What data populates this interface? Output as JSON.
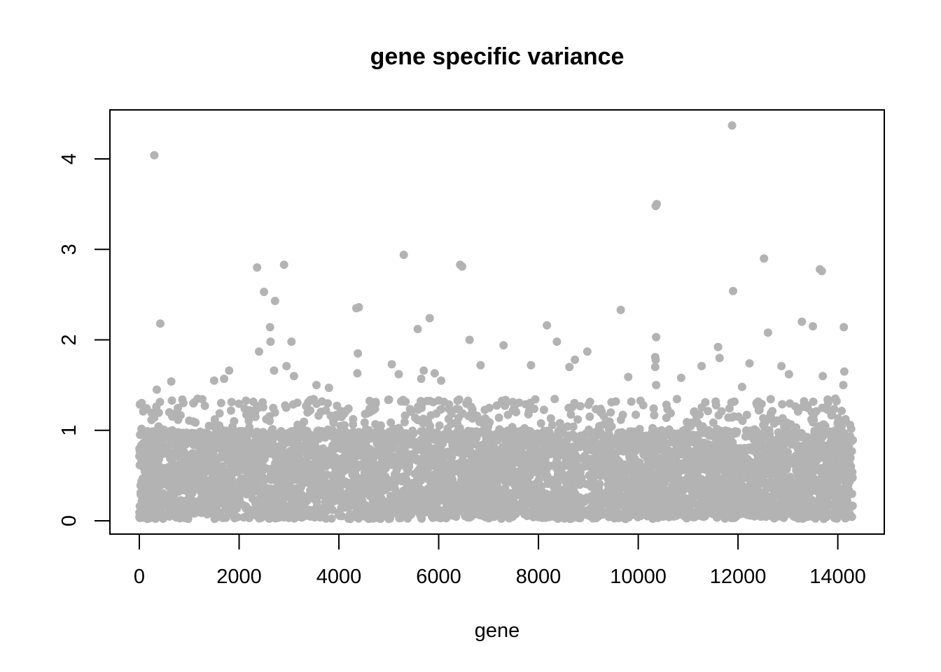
{
  "chart_data": {
    "type": "scatter",
    "title": "gene specific variance",
    "xlabel": "gene",
    "ylabel": "",
    "xlim": [
      0,
      14300
    ],
    "ylim": [
      0,
      4.4
    ],
    "x_ticks": [
      "0",
      "2000",
      "4000",
      "6000",
      "8000",
      "10000",
      "12000",
      "14000"
    ],
    "y_ticks": [
      "0",
      "1",
      "2",
      "3",
      "4"
    ],
    "point_color": "#b3b3b3",
    "n_points": 14300,
    "bulk_range": [
      0.02,
      1.0
    ],
    "grid": false,
    "legend": "none",
    "outliers": [
      {
        "x": 300,
        "y": 4.04
      },
      {
        "x": 420,
        "y": 2.18
      },
      {
        "x": 350,
        "y": 1.45
      },
      {
        "x": 640,
        "y": 1.54
      },
      {
        "x": 2360,
        "y": 2.8
      },
      {
        "x": 2500,
        "y": 2.53
      },
      {
        "x": 2720,
        "y": 2.43
      },
      {
        "x": 2620,
        "y": 2.14
      },
      {
        "x": 2630,
        "y": 1.98
      },
      {
        "x": 2400,
        "y": 1.87
      },
      {
        "x": 2900,
        "y": 2.83
      },
      {
        "x": 3050,
        "y": 1.98
      },
      {
        "x": 2700,
        "y": 1.66
      },
      {
        "x": 2950,
        "y": 1.71
      },
      {
        "x": 3100,
        "y": 1.6
      },
      {
        "x": 1800,
        "y": 1.66
      },
      {
        "x": 1700,
        "y": 1.57
      },
      {
        "x": 1500,
        "y": 1.55
      },
      {
        "x": 4350,
        "y": 2.35
      },
      {
        "x": 4400,
        "y": 2.36
      },
      {
        "x": 4380,
        "y": 1.85
      },
      {
        "x": 4370,
        "y": 1.63
      },
      {
        "x": 3550,
        "y": 1.5
      },
      {
        "x": 3800,
        "y": 1.47
      },
      {
        "x": 5300,
        "y": 2.94
      },
      {
        "x": 5580,
        "y": 2.12
      },
      {
        "x": 5820,
        "y": 2.24
      },
      {
        "x": 5060,
        "y": 1.73
      },
      {
        "x": 5200,
        "y": 1.62
      },
      {
        "x": 5700,
        "y": 1.66
      },
      {
        "x": 5650,
        "y": 1.57
      },
      {
        "x": 5920,
        "y": 1.63
      },
      {
        "x": 6050,
        "y": 1.55
      },
      {
        "x": 6430,
        "y": 2.83
      },
      {
        "x": 6470,
        "y": 2.81
      },
      {
        "x": 6620,
        "y": 2.0
      },
      {
        "x": 6840,
        "y": 1.72
      },
      {
        "x": 7300,
        "y": 1.94
      },
      {
        "x": 7850,
        "y": 1.72
      },
      {
        "x": 8170,
        "y": 2.16
      },
      {
        "x": 8370,
        "y": 1.98
      },
      {
        "x": 8730,
        "y": 1.78
      },
      {
        "x": 8980,
        "y": 1.87
      },
      {
        "x": 8620,
        "y": 1.7
      },
      {
        "x": 9650,
        "y": 2.33
      },
      {
        "x": 9800,
        "y": 1.59
      },
      {
        "x": 10350,
        "y": 3.48
      },
      {
        "x": 10370,
        "y": 3.5
      },
      {
        "x": 10360,
        "y": 2.03
      },
      {
        "x": 10340,
        "y": 1.81
      },
      {
        "x": 10350,
        "y": 1.78
      },
      {
        "x": 10340,
        "y": 1.7
      },
      {
        "x": 10360,
        "y": 1.5
      },
      {
        "x": 10860,
        "y": 1.58
      },
      {
        "x": 11270,
        "y": 1.71
      },
      {
        "x": 11600,
        "y": 1.92
      },
      {
        "x": 11630,
        "y": 1.8
      },
      {
        "x": 11880,
        "y": 4.37
      },
      {
        "x": 11900,
        "y": 2.54
      },
      {
        "x": 12230,
        "y": 1.74
      },
      {
        "x": 12080,
        "y": 1.48
      },
      {
        "x": 12520,
        "y": 2.9
      },
      {
        "x": 12600,
        "y": 2.08
      },
      {
        "x": 12870,
        "y": 1.71
      },
      {
        "x": 13020,
        "y": 1.62
      },
      {
        "x": 13280,
        "y": 2.2
      },
      {
        "x": 13500,
        "y": 2.15
      },
      {
        "x": 13640,
        "y": 2.78
      },
      {
        "x": 13680,
        "y": 2.76
      },
      {
        "x": 14120,
        "y": 2.14
      },
      {
        "x": 14130,
        "y": 1.65
      },
      {
        "x": 14110,
        "y": 1.5
      },
      {
        "x": 13700,
        "y": 1.6
      },
      {
        "x": 13950,
        "y": 1.35
      }
    ]
  }
}
